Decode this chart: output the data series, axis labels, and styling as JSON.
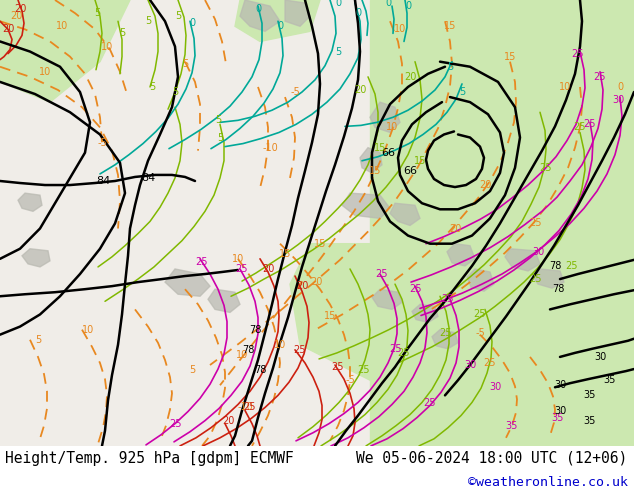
{
  "title_left": "Height/Temp. 925 hPa [gdpm] ECMWF",
  "title_right": "We 05-06-2024 18:00 UTC (12+06)",
  "copyright": "©weatheronline.co.uk",
  "fig_width": 6.34,
  "fig_height": 4.9,
  "dpi": 100,
  "background_color": "#ffffff",
  "bottom_text_color": "#000000",
  "copyright_color": "#0000cc",
  "text_fontsize": 10.5,
  "copyright_fontsize": 9.5,
  "bg_left": "#f0ede8",
  "bg_right": "#d4ecc0",
  "bg_topleft_green": "#c8e8b0",
  "bg_topright_green": "#c8e8b0"
}
